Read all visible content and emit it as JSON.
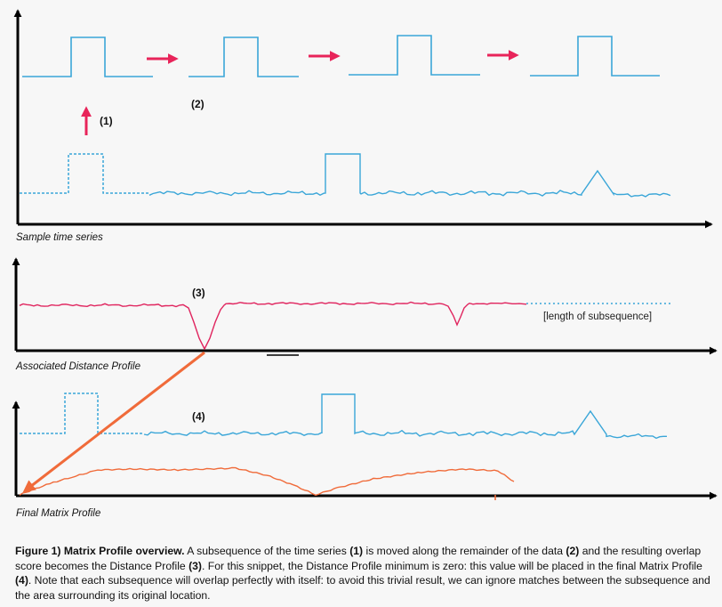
{
  "colors": {
    "signal": "#3aa6d8",
    "distance": "#e0245e",
    "matrix": "#f06b3a",
    "move_arrow": "#e8245a",
    "axis": "#000000"
  },
  "panels": {
    "sample": {
      "label": "Sample time series"
    },
    "distance": {
      "label": "Associated Distance Profile",
      "note": "[length of subsequence]"
    },
    "matrix": {
      "label": "Final Matrix Profile"
    }
  },
  "markers": {
    "m1": "(1)",
    "m2": "(2)",
    "m3": "(3)",
    "m4": "(4)"
  },
  "caption": {
    "title": "Figure 1) Matrix Profile overview.",
    "t1": " A subsequence of the time series ",
    "r1": "(1)",
    "t2": " is moved along the remainder of the data ",
    "r2": "(2)",
    "t3": " and the resulting overlap score becomes the Distance Profile ",
    "r3": "(3)",
    "t4": ". For this snippet, the Distance Profile minimum is zero: this value will be placed in the final Matrix Profile ",
    "r4": "(4)",
    "t5": ". Note that each subsequence will overlap perfectly with itself: to avoid this trivial result, we can ignore matches between the subsequence and the area surrounding its original location."
  }
}
